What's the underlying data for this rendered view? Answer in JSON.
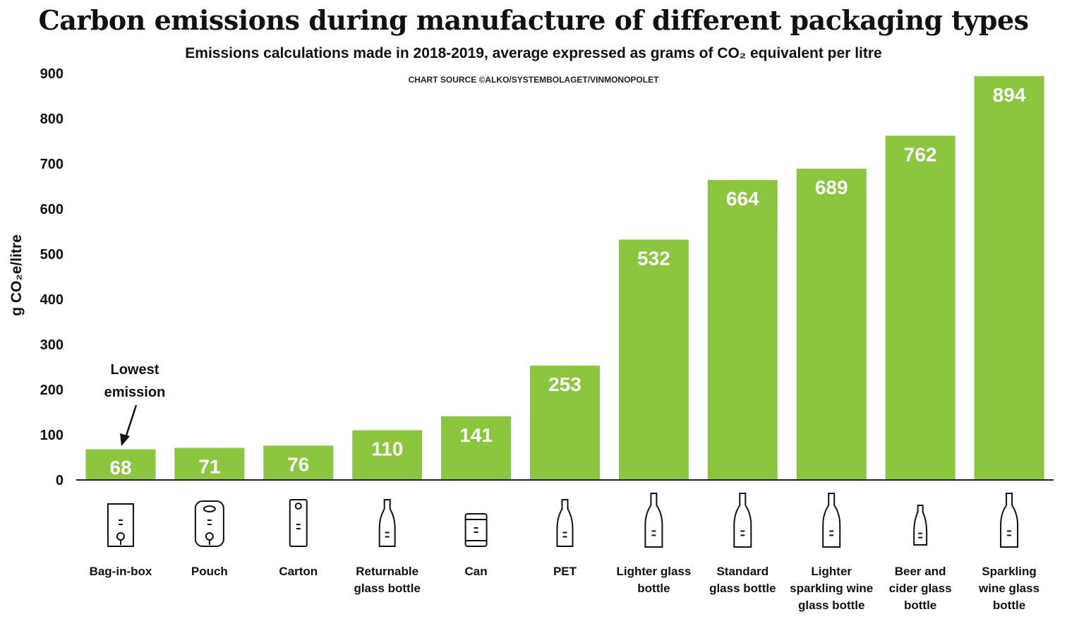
{
  "chart_data": {
    "type": "bar",
    "title": "Carbon emissions during manufacture of different packaging types",
    "subtitle": "Emissions calculations made in 2018-2019, average expressed as grams of CO₂ equivalent per litre",
    "source": "CHART SOURCE ©ALKO/SYSTEMBOLAGET/VINMONOPOLET",
    "ylabel": "g CO₂e/litre",
    "xlabel": "",
    "ylim": [
      0,
      900
    ],
    "yticks": [
      "0",
      "100",
      "200",
      "300",
      "400",
      "500",
      "600",
      "700",
      "800",
      "900"
    ],
    "categories": [
      [
        "Bag-in-box"
      ],
      [
        "Pouch"
      ],
      [
        "Carton"
      ],
      [
        "Returnable",
        "glass bottle"
      ],
      [
        "Can"
      ],
      [
        "PET"
      ],
      [
        "Lighter glass",
        "bottle"
      ],
      [
        "Standard",
        "glass bottle"
      ],
      [
        "Lighter",
        "sparkling wine",
        "glass bottle"
      ],
      [
        "Beer and",
        "cider glass",
        "bottle"
      ],
      [
        "Sparkling",
        "wine glass",
        "bottle"
      ]
    ],
    "values": [
      68,
      71,
      76,
      110,
      141,
      253,
      532,
      664,
      689,
      762,
      894
    ],
    "value_labels": [
      "68",
      "71",
      "76",
      "110",
      "141",
      "253",
      "532",
      "664",
      "689",
      "762",
      "894"
    ],
    "icons": [
      "bag-in-box-icon",
      "pouch-icon",
      "carton-icon",
      "returnable-bottle-icon",
      "can-icon",
      "pet-bottle-icon",
      "lighter-bottle-icon",
      "standard-bottle-icon",
      "sparkling-light-bottle-icon",
      "beer-bottle-icon",
      "sparkling-bottle-icon"
    ],
    "annotation": {
      "lines": [
        "Lowest",
        "emission"
      ],
      "target_category_index": 0
    },
    "bar_color": "#8cc63f",
    "grid": false
  }
}
